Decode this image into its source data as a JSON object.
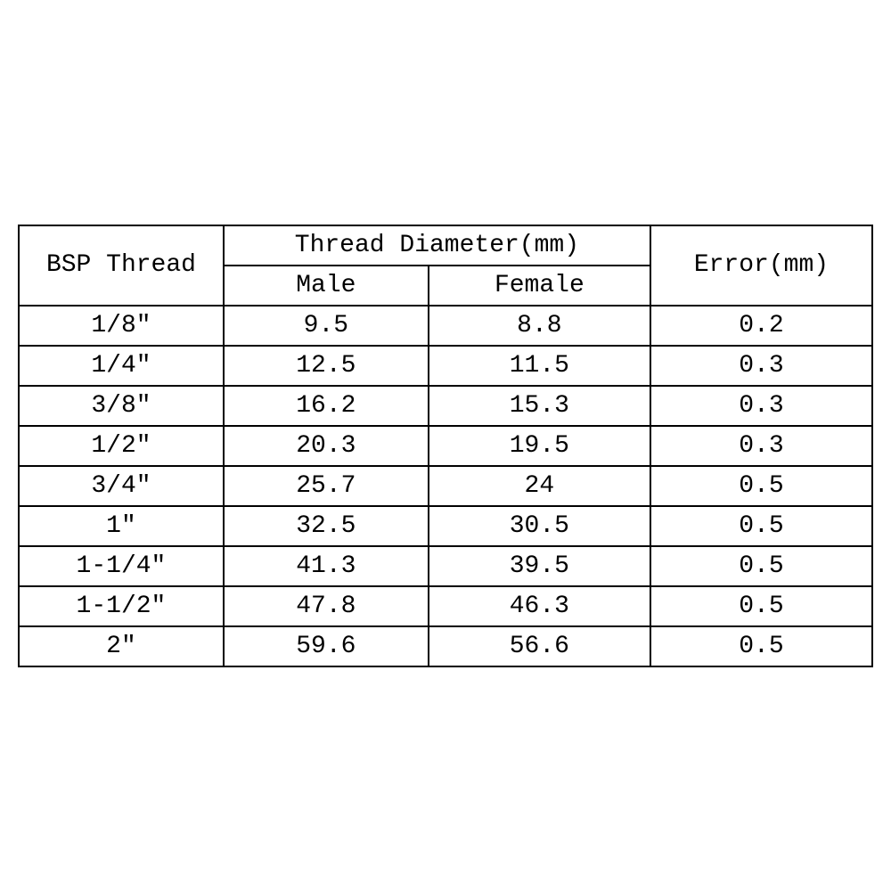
{
  "table": {
    "type": "table",
    "background_color": "#ffffff",
    "border_color": "#000000",
    "text_color": "#000000",
    "font_family": "Courier New",
    "font_size": 28,
    "border_width": 2,
    "columns": {
      "bsp_thread": {
        "label": "BSP Thread",
        "width_pct": 24
      },
      "thread_diameter": {
        "label": "Thread Diameter(mm)",
        "sub": {
          "male": {
            "label": "Male",
            "width_pct": 24
          },
          "female": {
            "label": "Female",
            "width_pct": 26
          }
        }
      },
      "error": {
        "label": "Error(mm)",
        "width_pct": 26
      }
    },
    "rows": [
      {
        "bsp": "1/8″",
        "male": "9.5",
        "female": "8.8",
        "error": "0.2"
      },
      {
        "bsp": "1/4″",
        "male": "12.5",
        "female": "11.5",
        "error": "0.3"
      },
      {
        "bsp": "3/8″",
        "male": "16.2",
        "female": "15.3",
        "error": "0.3"
      },
      {
        "bsp": "1/2″",
        "male": "20.3",
        "female": "19.5",
        "error": "0.3"
      },
      {
        "bsp": "3/4″",
        "male": "25.7",
        "female": "24",
        "error": "0.5"
      },
      {
        "bsp": "1″",
        "male": "32.5",
        "female": "30.5",
        "error": "0.5"
      },
      {
        "bsp": "1-1/4″",
        "male": "41.3",
        "female": "39.5",
        "error": "0.5"
      },
      {
        "bsp": "1-1/2″",
        "male": "47.8",
        "female": "46.3",
        "error": "0.5"
      },
      {
        "bsp": "2″",
        "male": "59.6",
        "female": "56.6",
        "error": "0.5"
      }
    ]
  }
}
